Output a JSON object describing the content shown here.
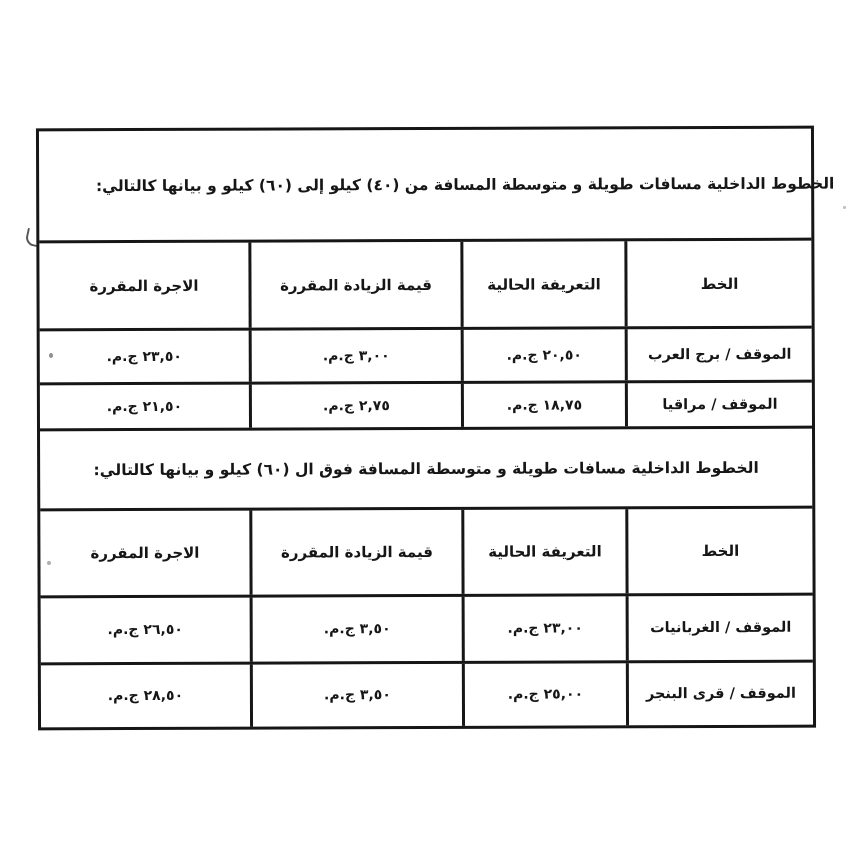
{
  "document": {
    "type": "scanned-fare-table",
    "currency_unit": "ج.م."
  },
  "colors": {
    "ink": "#161616",
    "paper": "#ffffff"
  },
  "sections": [
    {
      "title": "الخطوط الداخلية مسافات طويلة و متوسطة المسافة من (٤٠) كيلو إلى (٦٠) كيلو و بيانها كالتالي:",
      "columns": [
        "الخط",
        "التعريفة الحالية",
        "قيمة الزيادة المقررة",
        "الاجرة المقررة"
      ],
      "rows": [
        {
          "line": "الموقف / برج العرب",
          "current": "٢٠,٥٠ ج.م.",
          "increase": "٣,٠٠ ج.م.",
          "fare": "٢٣,٥٠ ج.م."
        },
        {
          "line": "الموقف / مراقيا",
          "current": "١٨,٧٥ ج.م.",
          "increase": "٢,٧٥ ج.م.",
          "fare": "٢١,٥٠ ج.م."
        }
      ]
    },
    {
      "title": "الخطوط الداخلية مسافات طويلة و متوسطة المسافة فوق ال (٦٠) كيلو و بيانها كالتالي:",
      "columns": [
        "الخط",
        "التعريفة الحالية",
        "قيمة الزيادة المقررة",
        "الاجرة المقررة"
      ],
      "rows": [
        {
          "line": "الموقف / الغربانيات",
          "current": "٢٣,٠٠ ج.م.",
          "increase": "٣,٥٠ ج.م.",
          "fare": "٢٦,٥٠ ج.م."
        },
        {
          "line": "الموقف / قرى البنجر",
          "current": "٢٥,٠٠ ج.م.",
          "increase": "٣,٥٠ ج.م.",
          "fare": "٢٨,٥٠ ج.م."
        }
      ]
    }
  ]
}
